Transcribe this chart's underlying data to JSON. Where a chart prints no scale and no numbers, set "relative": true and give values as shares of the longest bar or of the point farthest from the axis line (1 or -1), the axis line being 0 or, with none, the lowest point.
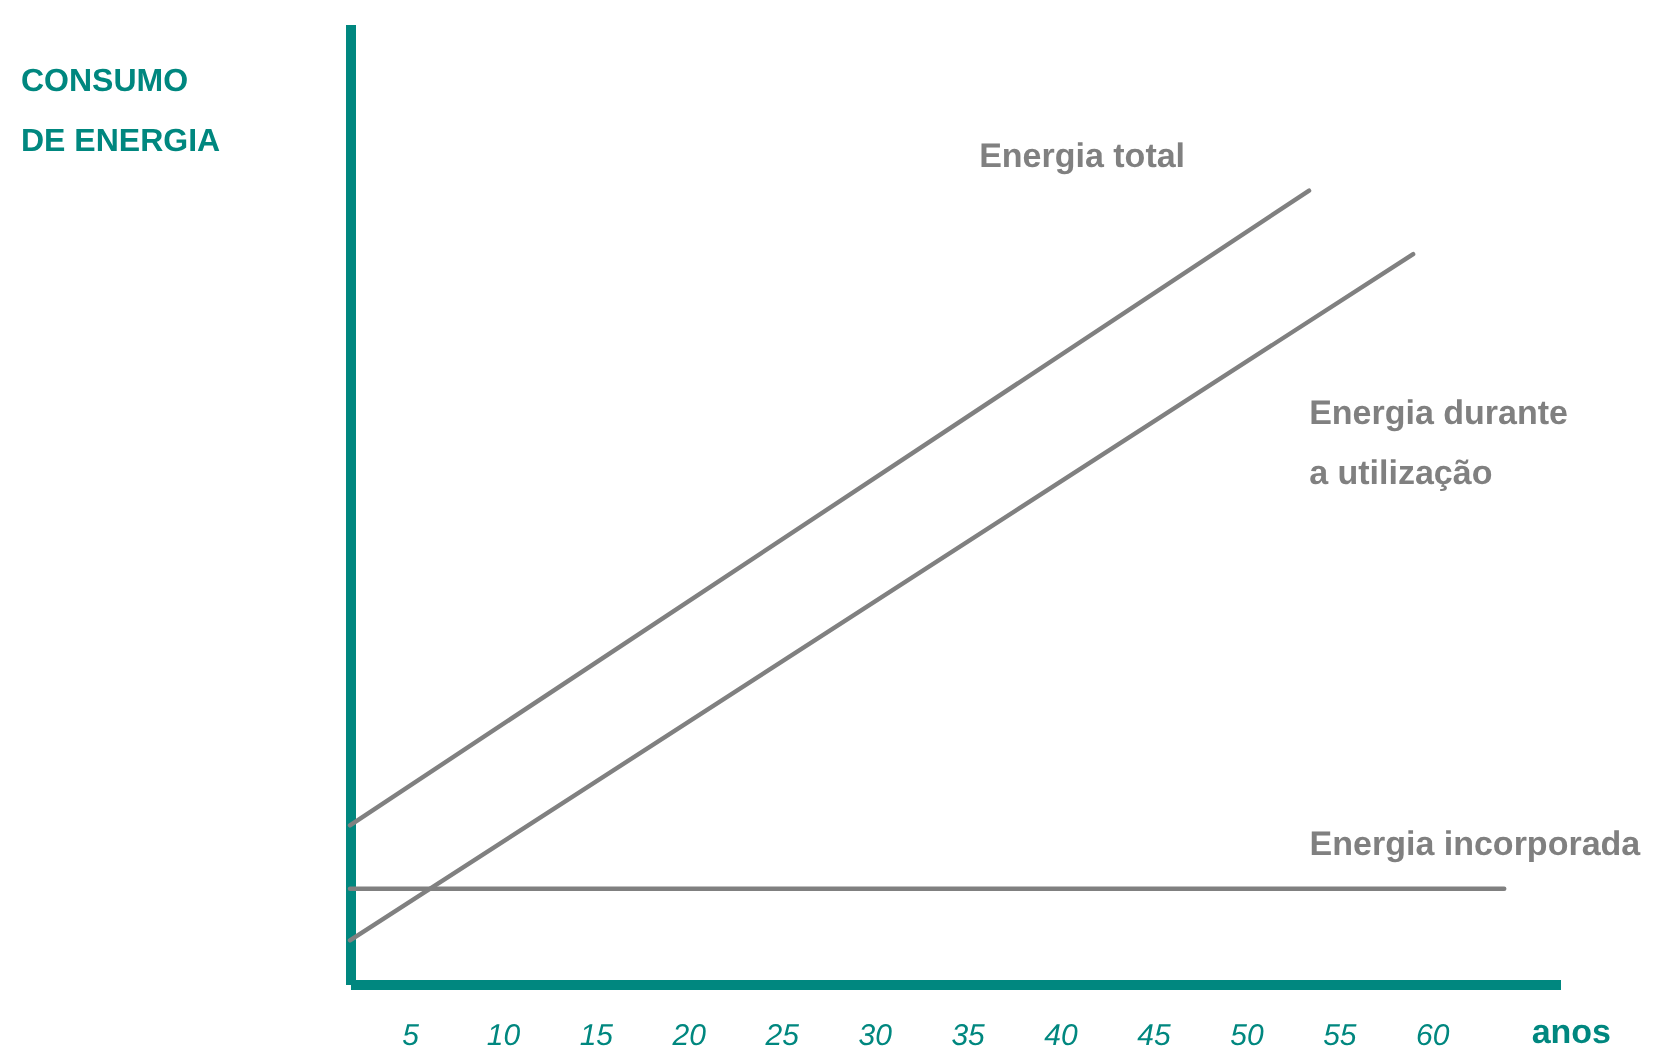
{
  "chart_data": {
    "type": "line",
    "relative": true,
    "ylabel": "CONSUMO DE ENERGIA",
    "xlabel": "anos",
    "xlim": [
      1.8,
      66.9
    ],
    "xticks": [
      5,
      10,
      15,
      20,
      25,
      30,
      35,
      40,
      45,
      50,
      55,
      60
    ],
    "grid": false,
    "series": [
      {
        "name": "Energia total",
        "color": "#808080",
        "x": [
          1.8,
          53.4
        ],
        "values": [
          0.2,
          1
        ]
      },
      {
        "name": "Energia durante a utilização",
        "color": "#808080",
        "x": [
          1.8,
          59
        ],
        "values": [
          0.055,
          0.92
        ]
      },
      {
        "name": "Energia incorporada",
        "color": "#808080",
        "x": [
          1.8,
          63.9
        ],
        "values": [
          0.12,
          0.12
        ]
      }
    ]
  }
}
